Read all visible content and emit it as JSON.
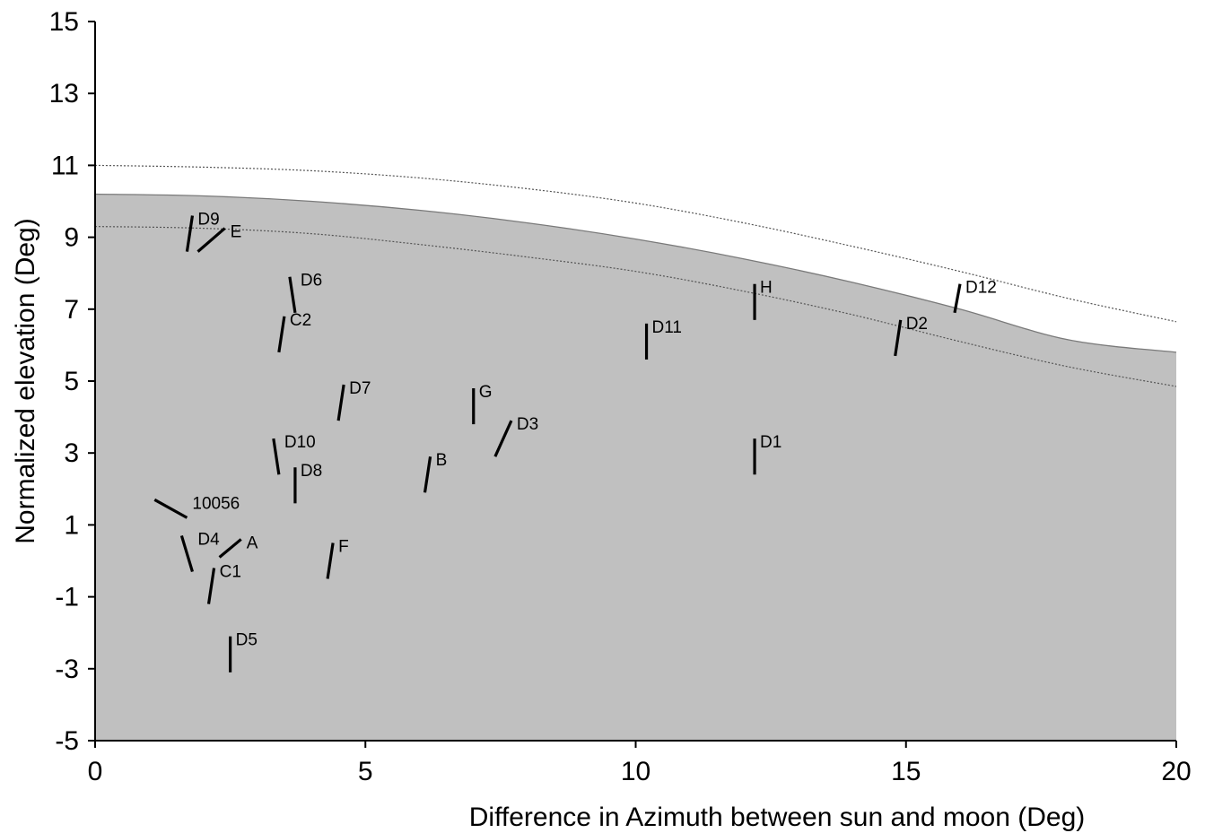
{
  "chart_data": {
    "type": "scatter",
    "title": "",
    "xlabel": "Difference in Azimuth between sun and moon (Deg)",
    "ylabel": "Normalized elevation  (Deg)",
    "xlim": [
      0,
      20
    ],
    "ylim": [
      -5,
      15
    ],
    "x_ticks": [
      "0",
      "5",
      "10",
      "15",
      "20"
    ],
    "y_ticks": [
      "-5",
      "-3",
      "-1",
      "1",
      "3",
      "5",
      "7",
      "9",
      "11",
      "13",
      "15"
    ],
    "grid": false,
    "legend": "none",
    "colors": {
      "shade": "#c0c0c0",
      "boundary": "#7a7a7a",
      "segment": "#000000"
    },
    "curves": [
      {
        "style": "solid",
        "boundary_of_shading": true,
        "points": [
          [
            0,
            10.2
          ],
          [
            2,
            10.15
          ],
          [
            4,
            10.0
          ],
          [
            6,
            9.75
          ],
          [
            8,
            9.4
          ],
          [
            10,
            8.95
          ],
          [
            12,
            8.4
          ],
          [
            14,
            7.75
          ],
          [
            16,
            7.0
          ],
          [
            18,
            6.15
          ],
          [
            20,
            5.8
          ]
        ]
      },
      {
        "style": "dotted",
        "points": [
          [
            0,
            11.0
          ],
          [
            2,
            10.95
          ],
          [
            4,
            10.85
          ],
          [
            6,
            10.65
          ],
          [
            8,
            10.35
          ],
          [
            10,
            9.95
          ],
          [
            12,
            9.4
          ],
          [
            14,
            8.75
          ],
          [
            16,
            8.05
          ],
          [
            18,
            7.3
          ],
          [
            20,
            6.65
          ]
        ]
      },
      {
        "style": "dotted",
        "points": [
          [
            0,
            9.3
          ],
          [
            2,
            9.25
          ],
          [
            4,
            9.1
          ],
          [
            6,
            8.8
          ],
          [
            8,
            8.45
          ],
          [
            10,
            8.05
          ],
          [
            12,
            7.5
          ],
          [
            14,
            6.85
          ],
          [
            16,
            6.1
          ],
          [
            18,
            5.4
          ],
          [
            20,
            4.85
          ]
        ]
      }
    ],
    "segments": [
      {
        "label": "D9",
        "x1": 1.7,
        "y1": 8.6,
        "x2": 1.8,
        "y2": 9.6
      },
      {
        "label": "E",
        "x1": 1.9,
        "y1": 8.6,
        "x2": 2.4,
        "y2": 9.25
      },
      {
        "label": "D6",
        "x1": 3.6,
        "y1": 7.9,
        "x2": 3.7,
        "y2": 6.9
      },
      {
        "label": "C2",
        "x1": 3.4,
        "y1": 5.8,
        "x2": 3.5,
        "y2": 6.8
      },
      {
        "label": "D7",
        "x1": 4.5,
        "y1": 3.9,
        "x2": 4.6,
        "y2": 4.9
      },
      {
        "label": "D10",
        "x1": 3.3,
        "y1": 3.4,
        "x2": 3.4,
        "y2": 2.4
      },
      {
        "label": "D8",
        "x1": 3.7,
        "y1": 1.6,
        "x2": 3.7,
        "y2": 2.6
      },
      {
        "label": "10056",
        "x1": 1.1,
        "y1": 1.7,
        "x2": 1.7,
        "y2": 1.2
      },
      {
        "label": "D4",
        "x1": 1.6,
        "y1": 0.7,
        "x2": 1.8,
        "y2": -0.3
      },
      {
        "label": "A",
        "x1": 2.3,
        "y1": 0.1,
        "x2": 2.7,
        "y2": 0.6
      },
      {
        "label": "C1",
        "x1": 2.2,
        "y1": -0.2,
        "x2": 2.1,
        "y2": -1.2
      },
      {
        "label": "D5",
        "x1": 2.5,
        "y1": -2.1,
        "x2": 2.5,
        "y2": -3.1
      },
      {
        "label": "F",
        "x1": 4.3,
        "y1": -0.5,
        "x2": 4.4,
        "y2": 0.5
      },
      {
        "label": "B",
        "x1": 6.1,
        "y1": 1.9,
        "x2": 6.2,
        "y2": 2.9
      },
      {
        "label": "G",
        "x1": 7.0,
        "y1": 3.8,
        "x2": 7.0,
        "y2": 4.8
      },
      {
        "label": "D3",
        "x1": 7.4,
        "y1": 2.9,
        "x2": 7.7,
        "y2": 3.9
      },
      {
        "label": "D11",
        "x1": 10.2,
        "y1": 5.6,
        "x2": 10.2,
        "y2": 6.6
      },
      {
        "label": "H",
        "x1": 12.2,
        "y1": 6.7,
        "x2": 12.2,
        "y2": 7.7
      },
      {
        "label": "D1",
        "x1": 12.2,
        "y1": 2.4,
        "x2": 12.2,
        "y2": 3.4
      },
      {
        "label": "D2",
        "x1": 14.8,
        "y1": 5.7,
        "x2": 14.9,
        "y2": 6.7
      },
      {
        "label": "D12",
        "x1": 15.9,
        "y1": 6.9,
        "x2": 16.0,
        "y2": 7.7
      }
    ]
  }
}
